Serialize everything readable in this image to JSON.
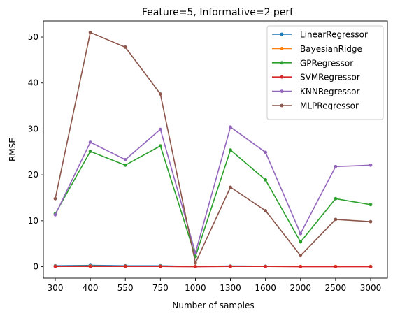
{
  "chart_data": {
    "type": "line",
    "title": "Feature=5, Informative=2 perf",
    "xlabel": "Number of samples",
    "ylabel": "RMSE",
    "categories": [
      "300",
      "400",
      "550",
      "750",
      "1000",
      "1300",
      "1600",
      "2000",
      "2500",
      "3000"
    ],
    "ylim": [
      -2.5,
      53.5
    ],
    "yticks": [
      0,
      10,
      20,
      30,
      40,
      50
    ],
    "grid": false,
    "legend": "top-right",
    "series": [
      {
        "name": "LinearRegressor",
        "color": "#1f77b4",
        "values": [
          0.2,
          0.3,
          0.2,
          0.2,
          0.05,
          0.15,
          0.1,
          0.05,
          0.05,
          0.05
        ]
      },
      {
        "name": "BayesianRidge",
        "color": "#ff7f0e",
        "values": [
          0.1,
          0.15,
          0.1,
          0.1,
          0.05,
          0.1,
          0.05,
          0.05,
          0.05,
          0.05
        ]
      },
      {
        "name": "GPRegressor",
        "color": "#2ca02c",
        "values": [
          11.5,
          25.1,
          22.1,
          26.3,
          2.2,
          25.4,
          18.9,
          5.4,
          14.8,
          13.5
        ]
      },
      {
        "name": "SVMRegressor",
        "color": "#d62728",
        "values": [
          0.05,
          0.05,
          0.05,
          0.05,
          0.0,
          0.05,
          0.05,
          0.0,
          0.0,
          0.0
        ]
      },
      {
        "name": "KNNRegressor",
        "color": "#9467bd",
        "values": [
          11.3,
          27.1,
          23.3,
          29.9,
          3.0,
          30.4,
          24.9,
          7.2,
          21.8,
          22.1
        ]
      },
      {
        "name": "MLPRegressor",
        "color": "#8c564b",
        "values": [
          14.8,
          51.0,
          47.8,
          37.6,
          0.8,
          17.3,
          12.2,
          2.4,
          10.3,
          9.8
        ]
      }
    ]
  }
}
